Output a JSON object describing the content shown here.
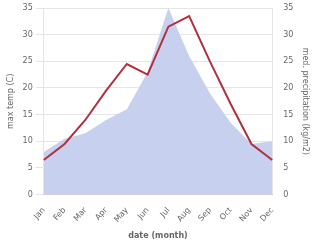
{
  "chart_data": {
    "type": "line",
    "categories": [
      "Jan",
      "Feb",
      "Mar",
      "Apr",
      "May",
      "Jun",
      "Jul",
      "Aug",
      "Sep",
      "Oct",
      "Nov",
      "Dec"
    ],
    "series": [
      {
        "type": "area",
        "color": "#c8d0f0",
        "axis": "y2",
        "values": [
          8.0,
          10.5,
          11.5,
          14.0,
          16.0,
          23.0,
          35.0,
          26.0,
          19.0,
          13.5,
          9.5,
          10.0
        ]
      },
      {
        "type": "line",
        "color": "#b03040",
        "values": [
          6.5,
          9.5,
          14.0,
          19.5,
          24.5,
          22.5,
          31.5,
          33.5,
          25.0,
          17.0,
          9.5,
          6.5
        ]
      }
    ],
    "xlabel": "date (month)",
    "ylabel": "max temp (C)",
    "y2label": "med. precipitation (kg/m2)",
    "ylim": [
      0,
      35
    ],
    "yticks": [
      0,
      5,
      10,
      15,
      20,
      25,
      30,
      35
    ],
    "y2lim": [
      0,
      35
    ],
    "y2ticks": [
      0,
      5,
      10,
      15,
      20,
      25,
      30,
      35
    ],
    "grid": true
  }
}
